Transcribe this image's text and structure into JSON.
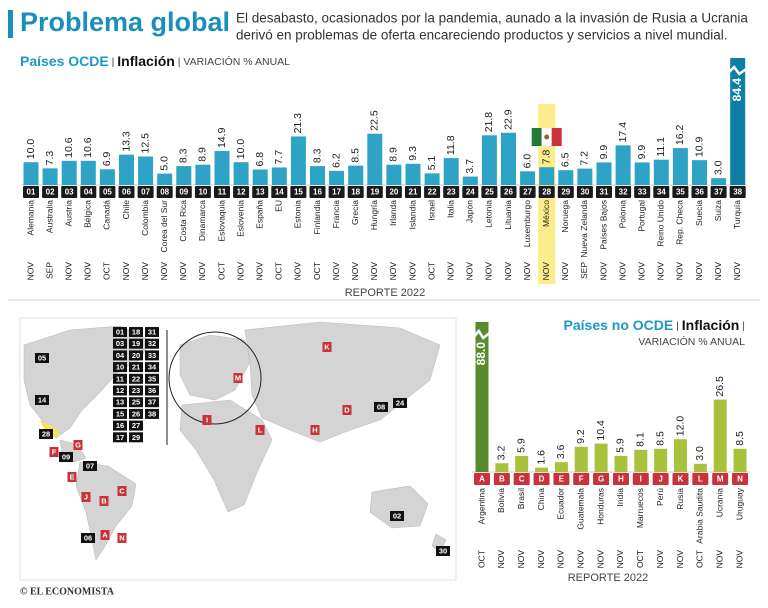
{
  "header": {
    "title": "Problema global",
    "description": [
      "El desabasto, ocasionados por la pandemia, aunado a la invasión de Rusia a Ucrania",
      "derivó en problemas de oferta encareciendo productos y servicios a nivel mundial."
    ]
  },
  "chart_data": [
    {
      "type": "bar",
      "title": "Países OCDE",
      "subtitle": "Inflación",
      "unit_label": "VARIACIÓN % ANUAL",
      "note": "REPORTE 2022",
      "codes": [
        "01",
        "02",
        "03",
        "04",
        "05",
        "06",
        "07",
        "08",
        "09",
        "10",
        "11",
        "12",
        "13",
        "14",
        "15",
        "16",
        "17",
        "18",
        "19",
        "20",
        "21",
        "22",
        "23",
        "24",
        "25",
        "26",
        "27",
        "28",
        "29",
        "30",
        "31",
        "32",
        "33",
        "34",
        "35",
        "36",
        "37",
        "38"
      ],
      "categories": [
        "Alemania",
        "Australia",
        "Austria",
        "Bélgica",
        "Canadá",
        "Chile",
        "Colombia",
        "Corea del Sur",
        "Costa Rica",
        "Dinamarca",
        "Eslovaquia",
        "Eslovenia",
        "España",
        "EU",
        "Estonia",
        "Finlandia",
        "Francia",
        "Grecia",
        "Hungría",
        "Irlanda",
        "Islandia",
        "Israel",
        "Italia",
        "Japón",
        "Letonia",
        "Lituania",
        "Luxemburgo",
        "México",
        "Noruega",
        "Nueva Zelanda",
        "Países Bajos",
        "Polonia",
        "Portugal",
        "Reino Unido",
        "Rep. Checa",
        "Suecia",
        "Suiza",
        "Turquía"
      ],
      "months": [
        "NOV",
        "SEP",
        "NOV",
        "NOV",
        "OCT",
        "NOV",
        "NOV",
        "NOV",
        "NOV",
        "NOV",
        "OCT",
        "NOV",
        "NOV",
        "OCT",
        "NOV",
        "OCT",
        "NOV",
        "NOV",
        "NOV",
        "NOV",
        "NOV",
        "OCT",
        "NOV",
        "NOV",
        "NOV",
        "NOV",
        "NOV",
        "NOV",
        "NOV",
        "SEP",
        "NOV",
        "NOV",
        "NOV",
        "NOV",
        "NOV",
        "NOV",
        "NOV",
        "NOV"
      ],
      "values": [
        10.0,
        7.3,
        10.6,
        10.6,
        6.9,
        13.3,
        12.5,
        5.0,
        8.3,
        8.9,
        14.9,
        10.0,
        6.8,
        7.7,
        21.3,
        8.3,
        6.2,
        8.5,
        22.5,
        8.9,
        9.3,
        5.1,
        11.8,
        3.7,
        21.8,
        22.9,
        6.0,
        7.8,
        6.5,
        7.2,
        9.9,
        17.4,
        9.9,
        11.1,
        16.2,
        10.9,
        3.0,
        84.4
      ],
      "value_labels": [
        "10.0",
        "7.3",
        "10.6",
        "10.6",
        "6.9",
        "13.3",
        "12.5",
        "5.0",
        "8.3",
        "8.9",
        "14.9",
        "10.0",
        "6.8",
        "7.7",
        "21.3",
        "8.3",
        "6.2",
        "8.5",
        "22.5",
        "8.9",
        "9.3",
        "5.1",
        "11.8",
        "3.7",
        "21.8",
        "22.9",
        "6.0",
        "7.8",
        "6.5",
        "7.2",
        "9.9",
        "17.4",
        "9.9",
        "11.1",
        "16.2",
        "10.9",
        "3.0",
        "84.4"
      ],
      "color": "#2ea3c6",
      "accent": "Turquía",
      "accent_color": "#0d7fa6",
      "highlight": "México",
      "highlight_color": "#fbee8a",
      "badge_color": "#1a1a1a",
      "ylim": [
        0,
        25
      ]
    },
    {
      "type": "bar",
      "title": "Países no OCDE",
      "subtitle": "Inflación",
      "unit_label": "VARIACIÓN % ANUAL",
      "note": "REPORTE 2022",
      "codes": [
        "A",
        "B",
        "C",
        "D",
        "E",
        "F",
        "G",
        "H",
        "I",
        "J",
        "K",
        "L",
        "M",
        "N"
      ],
      "categories": [
        "Argentina",
        "Bolivia",
        "Brasil",
        "China",
        "Ecuador",
        "Guatemala",
        "Honduras",
        "India",
        "Marruecos",
        "Perú",
        "Rusia",
        "Arabia Saudita",
        "Ucrania",
        "Uruguay"
      ],
      "months": [
        "OCT",
        "NOV",
        "NOV",
        "NOV",
        "NOV",
        "NOV",
        "NOV",
        "NOV",
        "OCT",
        "NOV",
        "NOV",
        "OCT",
        "NOV",
        "NOV"
      ],
      "values": [
        88.0,
        3.2,
        5.9,
        1.6,
        3.6,
        9.2,
        10.4,
        5.9,
        8.1,
        8.5,
        12.0,
        3.0,
        26.5,
        8.5
      ],
      "value_labels": [
        "88.0",
        "3.2",
        "5.9",
        "1.6",
        "3.6",
        "9.2",
        "10.4",
        "5.9",
        "8.1",
        "8.5",
        "12.0",
        "3.0",
        "26.5",
        "8.5"
      ],
      "color": "#a9c23c",
      "accent": "Argentina",
      "accent_color": "#5b8a2c",
      "badge_color": "#c8323a",
      "ylim": [
        0,
        30
      ]
    }
  ],
  "map": {
    "legend_rows": [
      [
        "01",
        "18",
        "31"
      ],
      [
        "03",
        "19",
        "32"
      ],
      [
        "04",
        "20",
        "33"
      ],
      [
        "10",
        "21",
        "34"
      ],
      [
        "11",
        "22",
        "35"
      ],
      [
        "12",
        "23",
        "36"
      ],
      [
        "13",
        "25",
        "37"
      ],
      [
        "15",
        "26",
        "38"
      ],
      [
        "16",
        "27"
      ],
      [
        "17",
        "29"
      ]
    ],
    "markers": [
      {
        "label": "05",
        "color": "#111111"
      },
      {
        "label": "14",
        "color": "#111111"
      },
      {
        "label": "28",
        "color": "#111111"
      },
      {
        "label": "G",
        "color": "#c8323a"
      },
      {
        "label": "F",
        "color": "#c8323a"
      },
      {
        "label": "09",
        "color": "#111111"
      },
      {
        "label": "07",
        "color": "#111111"
      },
      {
        "label": "E",
        "color": "#c8323a"
      },
      {
        "label": "C",
        "color": "#c8323a"
      },
      {
        "label": "J",
        "color": "#c8323a"
      },
      {
        "label": "B",
        "color": "#c8323a"
      },
      {
        "label": "06",
        "color": "#111111"
      },
      {
        "label": "A",
        "color": "#c8323a"
      },
      {
        "label": "N",
        "color": "#c8323a"
      },
      {
        "label": "K",
        "color": "#c8323a"
      },
      {
        "label": "M",
        "color": "#c8323a"
      },
      {
        "label": "D",
        "color": "#c8323a"
      },
      {
        "label": "08",
        "color": "#111111"
      },
      {
        "label": "24",
        "color": "#111111"
      },
      {
        "label": "I",
        "color": "#c8323a"
      },
      {
        "label": "L",
        "color": "#c8323a"
      },
      {
        "label": "H",
        "color": "#c8323a"
      },
      {
        "label": "02",
        "color": "#111111"
      },
      {
        "label": "30",
        "color": "#111111"
      }
    ]
  },
  "footer": "© EL ECONOMISTA"
}
